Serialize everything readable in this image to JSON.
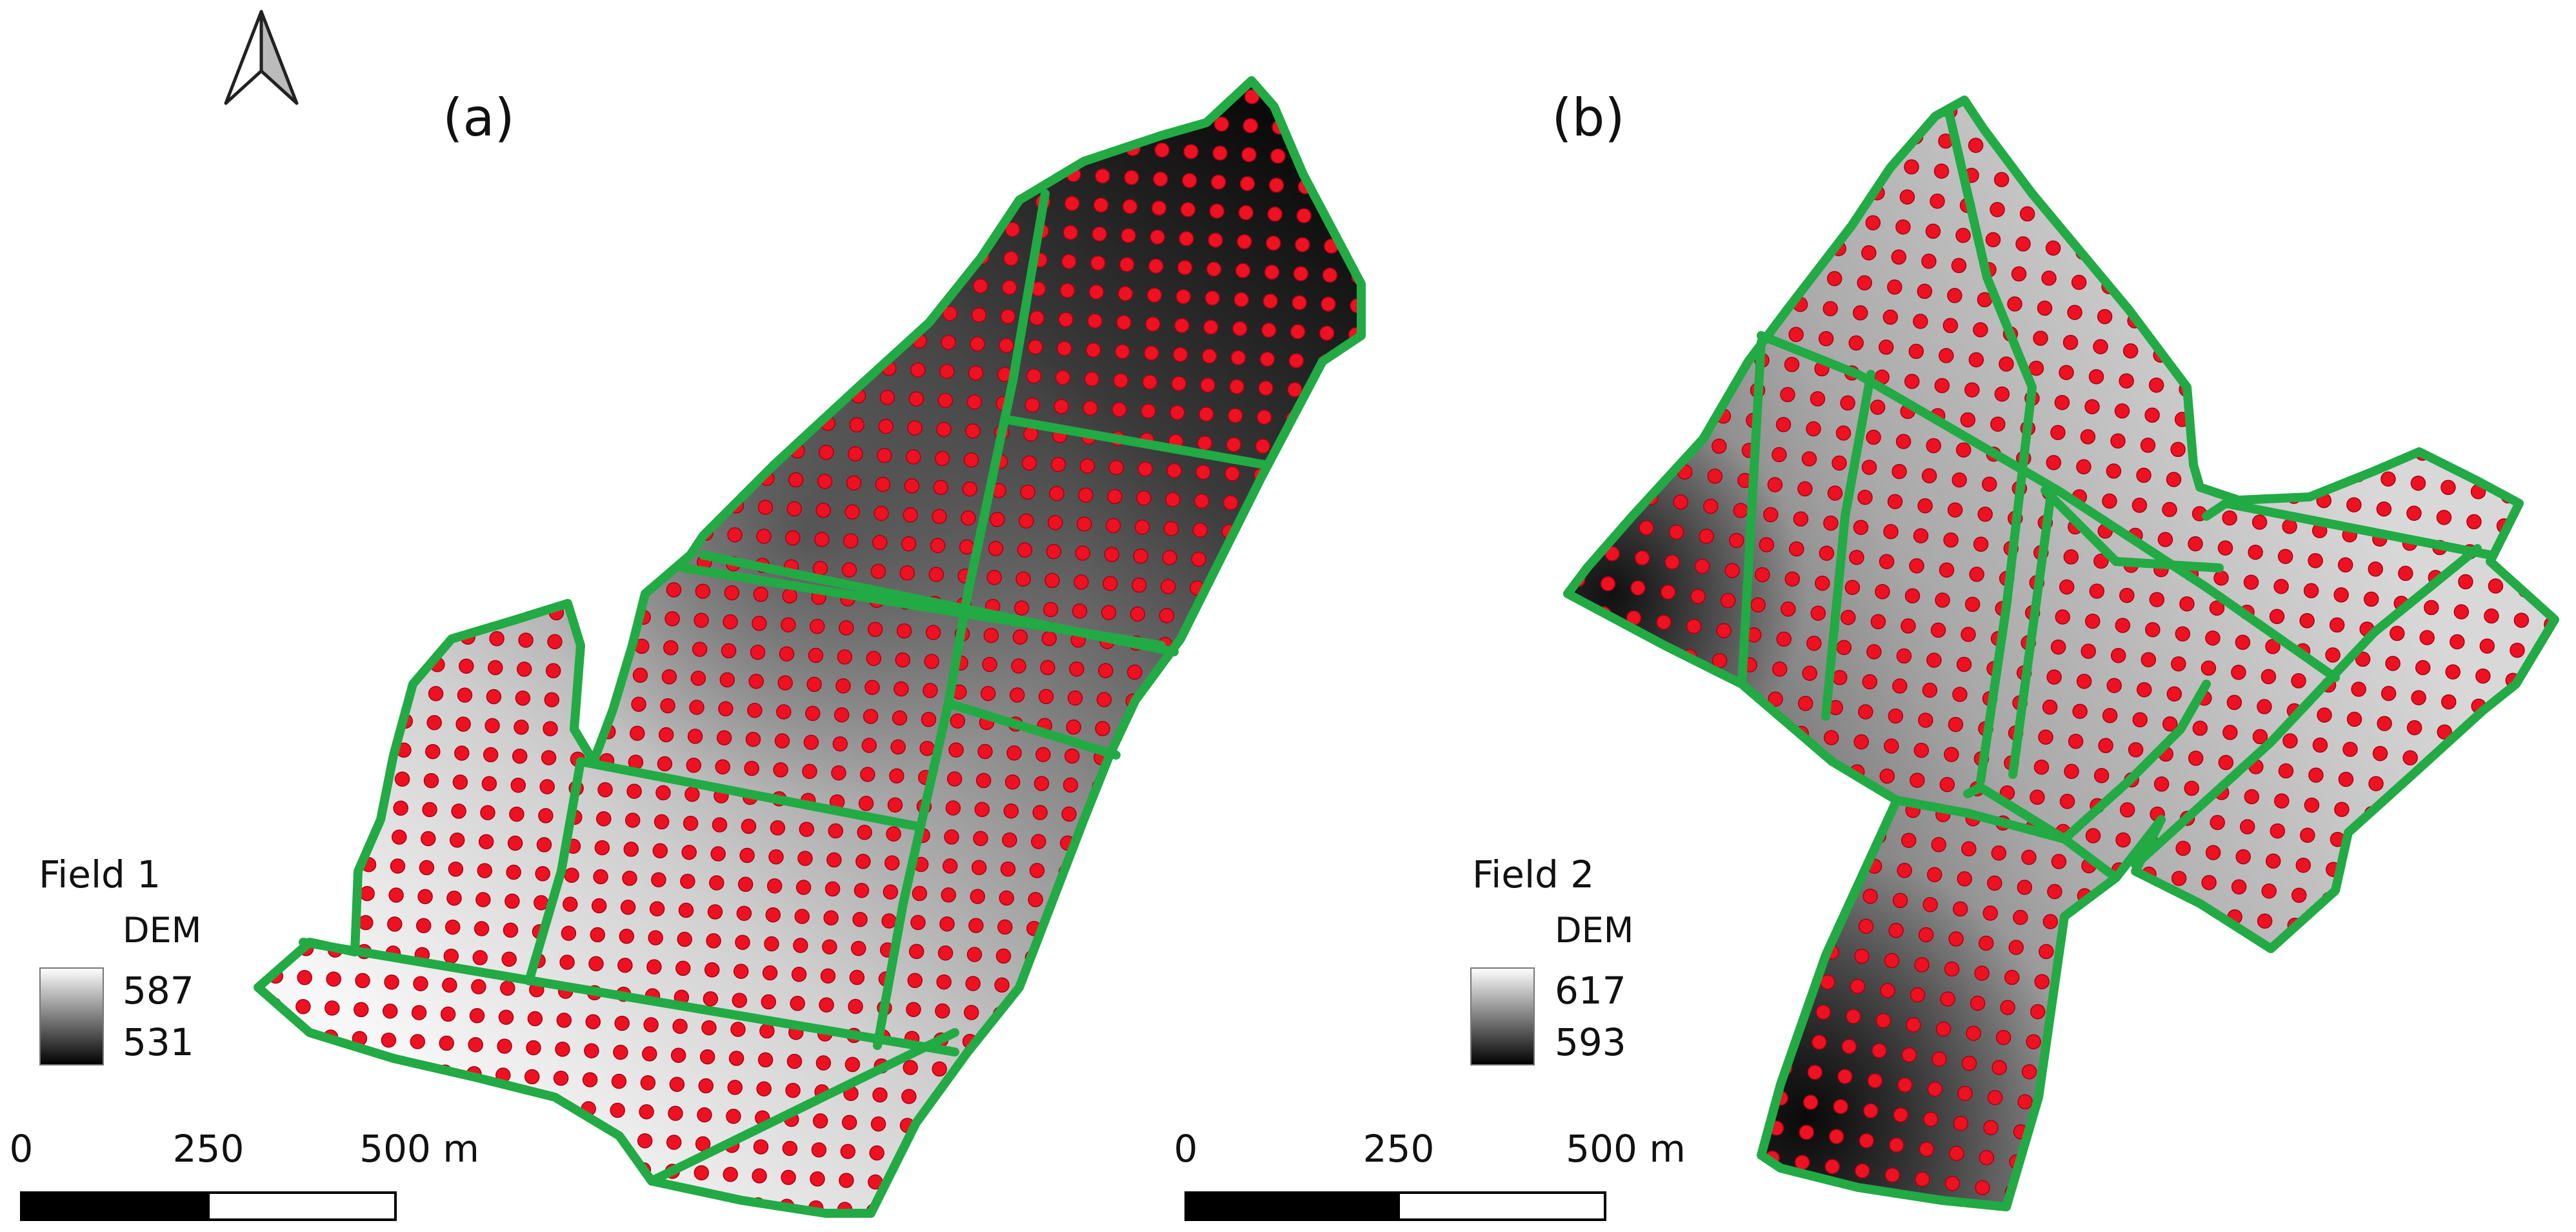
{
  "panels": [
    {
      "label": "(a)",
      "legend_title": "Field 1",
      "legend_subtitle": "DEM",
      "dem_max": "587",
      "dem_min": "531",
      "scale_labels": [
        "0",
        "250",
        "500 m"
      ]
    },
    {
      "label": "(b)",
      "legend_title": "Field 2",
      "legend_subtitle": "DEM",
      "dem_max": "617",
      "dem_min": "593",
      "scale_labels": [
        "0",
        "250",
        "500 m"
      ]
    }
  ],
  "colors": {
    "field_boundary": "#22aa44",
    "sample_point": "#ee1122",
    "sample_point_edge": "#aa0011",
    "dem_high": "#ffffff",
    "dem_low": "#000000"
  },
  "icons": {
    "north_arrow": "north-arrow-icon"
  }
}
